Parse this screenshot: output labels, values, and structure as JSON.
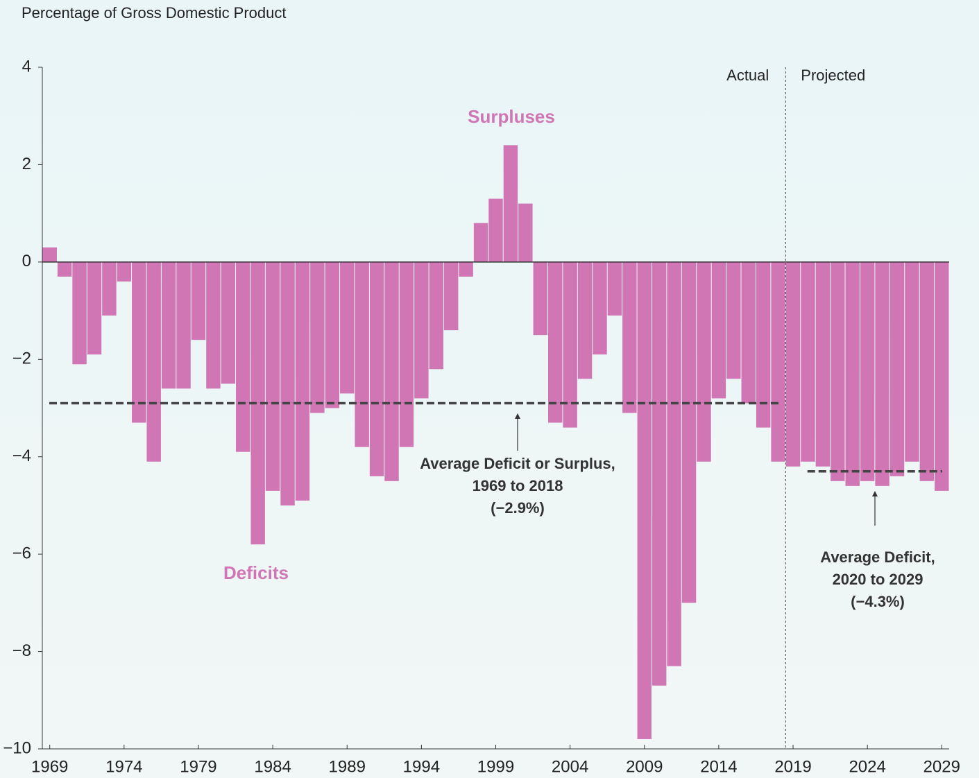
{
  "chart_data": {
    "type": "bar",
    "y_axis_label": "Percentage of Gross Domestic Product",
    "x": [
      1969,
      1970,
      1971,
      1972,
      1973,
      1974,
      1975,
      1976,
      1977,
      1978,
      1979,
      1980,
      1981,
      1982,
      1983,
      1984,
      1985,
      1986,
      1987,
      1988,
      1989,
      1990,
      1991,
      1992,
      1993,
      1994,
      1995,
      1996,
      1997,
      1998,
      1999,
      2000,
      2001,
      2002,
      2003,
      2004,
      2005,
      2006,
      2007,
      2008,
      2009,
      2010,
      2011,
      2012,
      2013,
      2014,
      2015,
      2016,
      2017,
      2018,
      2019,
      2020,
      2021,
      2022,
      2023,
      2024,
      2025,
      2026,
      2027,
      2028,
      2029
    ],
    "values": [
      0.3,
      -0.3,
      -2.1,
      -1.9,
      -1.1,
      -0.4,
      -3.3,
      -4.1,
      -2.6,
      -2.6,
      -1.6,
      -2.6,
      -2.5,
      -3.9,
      -5.8,
      -4.7,
      -5.0,
      -4.9,
      -3.1,
      -3.0,
      -2.7,
      -3.8,
      -4.4,
      -4.5,
      -3.8,
      -2.8,
      -2.2,
      -1.4,
      -0.3,
      0.8,
      1.3,
      2.4,
      1.2,
      -1.5,
      -3.3,
      -3.4,
      -2.4,
      -1.9,
      -1.1,
      -3.1,
      -9.8,
      -8.7,
      -8.3,
      -7.0,
      -4.1,
      -2.8,
      -2.4,
      -2.9,
      -3.4,
      -4.1,
      -4.2,
      -4.1,
      -4.2,
      -4.5,
      -4.6,
      -4.5,
      -4.6,
      -4.4,
      -4.1,
      -4.5,
      -4.7
    ],
    "color": "#d076b4",
    "xlim": [
      1968.5,
      2029.5
    ],
    "xticks": [
      1969,
      1974,
      1979,
      1984,
      1989,
      1994,
      1999,
      2004,
      2009,
      2014,
      2019,
      2024,
      2029
    ],
    "ylim": [
      -10,
      4
    ],
    "yticks": [
      {
        "value": -10,
        "label": "−10"
      },
      {
        "value": -8,
        "label": "−8"
      },
      {
        "value": -6,
        "label": "−6"
      },
      {
        "value": -4,
        "label": "−4"
      },
      {
        "value": -2,
        "label": "−2"
      },
      0,
      2,
      4
    ],
    "grid": false,
    "last_actual_year": 2018,
    "period_labels": [
      "Actual",
      "Projected"
    ],
    "region_labels": [
      "Surpluses",
      "Deficits"
    ],
    "averages": [
      {
        "value": -2.9,
        "from": 1969,
        "to": 2018,
        "label": [
          "Average Deficit or Surplus,",
          "1969 to 2018",
          "(−2.9%)"
        ]
      },
      {
        "value": -4.3,
        "from": 2020,
        "to": 2029,
        "label": [
          "Average Deficit,",
          "2020 to 2029",
          "(−4.3%)"
        ]
      }
    ]
  }
}
